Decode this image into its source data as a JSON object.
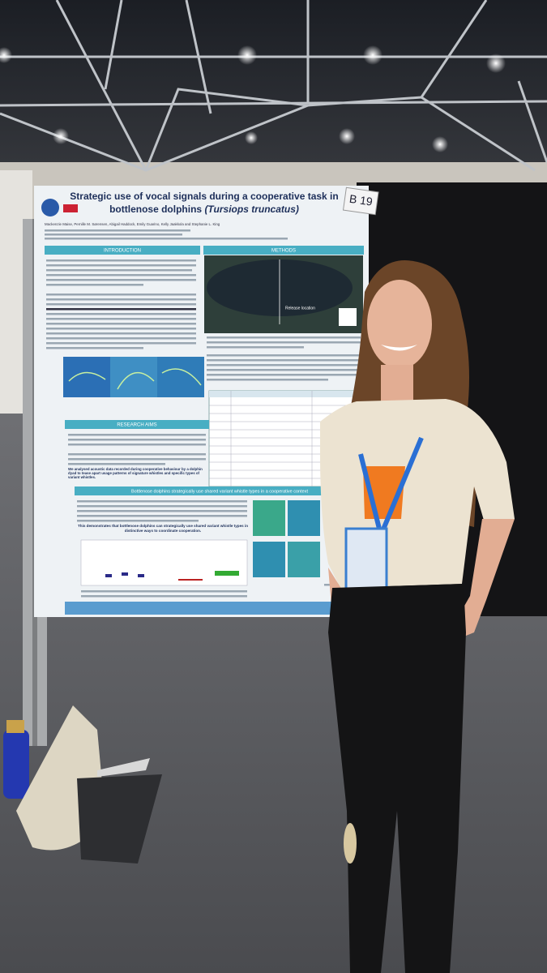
{
  "poster": {
    "board_number": "B 19",
    "title_lines": [
      "Strategic use of vocal signals during a cooperative task in",
      "bottlenose dolphins"
    ],
    "species": "(Tursiops truncatus)",
    "authors": "Mackenzie Maise, Pernille M. Sørensen, Abigail Haddock, Emily Guarino, Kelly Jaakkola and Stephanie L. King",
    "sections": {
      "introduction": "INTRODUCTION",
      "methods": "METHODS",
      "research_aims": "RESEARCH AIMS",
      "results": "Bottlenose dolphins strategically use shared variant whistle types in a cooperative context"
    },
    "map_label": "Release location",
    "aims_statement": "We analysed acoustic data recorded during cooperative behaviour by a dolphin dyad to tease apart usage patterns of signature whistles and specific types of variant whistles.",
    "conclusion": "This demonstrates that bottlenose dolphins can strategically use shared variant whistle types in distinctive ways to coordinate cooperation."
  }
}
